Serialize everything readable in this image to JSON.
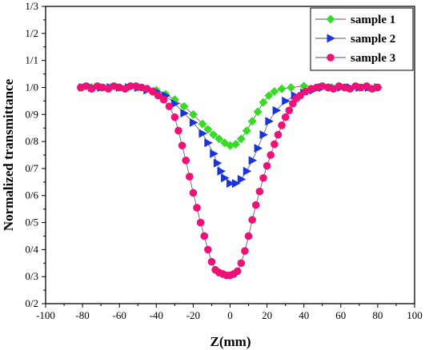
{
  "chart_data": {
    "type": "scatter",
    "title": "",
    "xlabel": "Z(mm)",
    "ylabel": "Normalized transmittance",
    "xlim": [
      -100,
      100
    ],
    "ylim": [
      0.2,
      1.3
    ],
    "x_ticks": [
      -100,
      -80,
      -60,
      -40,
      -20,
      0,
      20,
      40,
      60,
      80,
      100
    ],
    "x_tick_labels": [
      "-100",
      "-80",
      "-60",
      "-40",
      "-20",
      "0",
      "20",
      "40",
      "60",
      "80",
      "100"
    ],
    "y_ticks": [
      0.2,
      0.3,
      0.4,
      0.5,
      0.6,
      0.7,
      0.8,
      0.9,
      1.0,
      1.1,
      1.2,
      1.3
    ],
    "y_tick_labels": [
      "0/2",
      "0/3",
      "0/4",
      "0/5",
      "0/6",
      "0/7",
      "0/8",
      "0/9",
      "1/0",
      "1/1",
      "1/2",
      "1/3"
    ],
    "grid": false,
    "legend_position": "top-right",
    "series": [
      {
        "name": "sample 1",
        "color": "#33dd22",
        "marker": "diamond",
        "points": [
          [
            -80,
            1.0
          ],
          [
            -75,
            1.0
          ],
          [
            -70,
            1.0
          ],
          [
            -65,
            1.0
          ],
          [
            -60,
            1.0
          ],
          [
            -55,
            1.0
          ],
          [
            -50,
            1.0
          ],
          [
            -45,
            0.995
          ],
          [
            -40,
            0.99
          ],
          [
            -35,
            0.975
          ],
          [
            -30,
            0.955
          ],
          [
            -25,
            0.93
          ],
          [
            -20,
            0.9
          ],
          [
            -15,
            0.865
          ],
          [
            -12,
            0.845
          ],
          [
            -9,
            0.825
          ],
          [
            -6,
            0.81
          ],
          [
            -3,
            0.795
          ],
          [
            0,
            0.785
          ],
          [
            3,
            0.79
          ],
          [
            6,
            0.81
          ],
          [
            9,
            0.84
          ],
          [
            12,
            0.875
          ],
          [
            15,
            0.91
          ],
          [
            18,
            0.945
          ],
          [
            21,
            0.97
          ],
          [
            24,
            0.985
          ],
          [
            28,
            0.995
          ],
          [
            33,
            1.0
          ],
          [
            40,
            1.005
          ],
          [
            48,
            1.0
          ],
          [
            55,
            1.0
          ],
          [
            62,
            1.0
          ],
          [
            70,
            1.0
          ],
          [
            75,
            1.0
          ],
          [
            80,
            1.0
          ]
        ]
      },
      {
        "name": "sample 2",
        "color": "#1a33dd",
        "marker": "triangle-right",
        "points": [
          [
            -80,
            1.0
          ],
          [
            -75,
            1.0
          ],
          [
            -70,
            1.0
          ],
          [
            -65,
            1.0
          ],
          [
            -60,
            1.0
          ],
          [
            -55,
            1.0
          ],
          [
            -50,
            1.0
          ],
          [
            -45,
            0.99
          ],
          [
            -40,
            0.985
          ],
          [
            -35,
            0.97
          ],
          [
            -30,
            0.94
          ],
          [
            -25,
            0.905
          ],
          [
            -20,
            0.87
          ],
          [
            -15,
            0.83
          ],
          [
            -12,
            0.795
          ],
          [
            -9,
            0.755
          ],
          [
            -7,
            0.72
          ],
          [
            -5,
            0.69
          ],
          [
            -3,
            0.665
          ],
          [
            0,
            0.645
          ],
          [
            3,
            0.645
          ],
          [
            6,
            0.66
          ],
          [
            9,
            0.69
          ],
          [
            12,
            0.73
          ],
          [
            15,
            0.775
          ],
          [
            18,
            0.825
          ],
          [
            21,
            0.875
          ],
          [
            25,
            0.915
          ],
          [
            30,
            0.95
          ],
          [
            35,
            0.97
          ],
          [
            40,
            0.98
          ],
          [
            45,
            0.99
          ],
          [
            50,
            1.0
          ],
          [
            55,
            1.0
          ],
          [
            60,
            1.0
          ],
          [
            65,
            1.0
          ],
          [
            70,
            1.0
          ],
          [
            75,
            1.0
          ],
          [
            80,
            1.0
          ]
        ]
      },
      {
        "name": "sample 3",
        "color": "#ee1177",
        "marker": "circle",
        "points": [
          [
            -81,
            1.0
          ],
          [
            -78,
            1.005
          ],
          [
            -75,
            0.995
          ],
          [
            -72,
            1.005
          ],
          [
            -69,
            1.0
          ],
          [
            -66,
            0.995
          ],
          [
            -63,
            1.005
          ],
          [
            -60,
            1.0
          ],
          [
            -57,
            0.995
          ],
          [
            -54,
            1.005
          ],
          [
            -51,
            1.005
          ],
          [
            -48,
            1.0
          ],
          [
            -45,
            0.995
          ],
          [
            -42,
            0.985
          ],
          [
            -39,
            0.97
          ],
          [
            -36,
            0.955
          ],
          [
            -33,
            0.93
          ],
          [
            -30,
            0.89
          ],
          [
            -28,
            0.84
          ],
          [
            -26,
            0.785
          ],
          [
            -24,
            0.73
          ],
          [
            -22,
            0.67
          ],
          [
            -20,
            0.61
          ],
          [
            -18,
            0.555
          ],
          [
            -16,
            0.5
          ],
          [
            -14,
            0.45
          ],
          [
            -12,
            0.4
          ],
          [
            -10,
            0.355
          ],
          [
            -8,
            0.325
          ],
          [
            -6,
            0.315
          ],
          [
            -4,
            0.31
          ],
          [
            -2,
            0.305
          ],
          [
            0,
            0.305
          ],
          [
            2,
            0.31
          ],
          [
            4,
            0.32
          ],
          [
            6,
            0.35
          ],
          [
            8,
            0.395
          ],
          [
            10,
            0.45
          ],
          [
            12,
            0.51
          ],
          [
            14,
            0.565
          ],
          [
            16,
            0.615
          ],
          [
            18,
            0.665
          ],
          [
            20,
            0.71
          ],
          [
            22,
            0.75
          ],
          [
            24,
            0.79
          ],
          [
            26,
            0.825
          ],
          [
            28,
            0.86
          ],
          [
            30,
            0.89
          ],
          [
            32,
            0.915
          ],
          [
            34,
            0.94
          ],
          [
            36,
            0.96
          ],
          [
            38,
            0.97
          ],
          [
            41,
            0.985
          ],
          [
            44,
            0.995
          ],
          [
            47,
            1.0
          ],
          [
            50,
            1.005
          ],
          [
            53,
            1.0
          ],
          [
            56,
            0.995
          ],
          [
            59,
            1.005
          ],
          [
            62,
            1.0
          ],
          [
            65,
            0.995
          ],
          [
            68,
            1.005
          ],
          [
            71,
            1.0
          ],
          [
            74,
            1.005
          ],
          [
            77,
            0.995
          ],
          [
            80,
            1.0
          ]
        ]
      }
    ]
  }
}
